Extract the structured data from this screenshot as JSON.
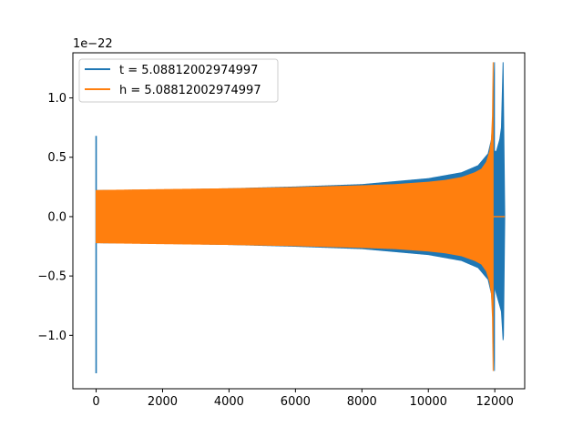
{
  "chart_data": {
    "type": "line",
    "title": "",
    "xlabel": "",
    "ylabel": "",
    "offset_text": "1e−22",
    "xlim": [
      -700,
      12900
    ],
    "ylim": [
      -1.45,
      1.38
    ],
    "xticks": [
      0,
      2000,
      4000,
      6000,
      8000,
      10000,
      12000
    ],
    "xtick_labels": [
      "0",
      "2000",
      "4000",
      "6000",
      "8000",
      "10000",
      "12000"
    ],
    "yticks": [
      -1.0,
      -0.5,
      0.0,
      0.5,
      1.0
    ],
    "ytick_labels": [
      "−1.0",
      "−0.5",
      "0.0",
      "0.5",
      "1.0"
    ],
    "grid": false,
    "legend_position": "upper-left",
    "series": [
      {
        "name": "t = 5.08812002974997",
        "color": "#1f77b4",
        "spike_start": {
          "x": 0,
          "min": -1.32,
          "max": 0.68
        },
        "envelope_x": [
          0,
          2000,
          4000,
          6000,
          8000,
          10000,
          11000,
          11500,
          11800,
          11900,
          11950,
          11990
        ],
        "envelope_amp": [
          0.22,
          0.225,
          0.235,
          0.25,
          0.27,
          0.32,
          0.37,
          0.43,
          0.53,
          0.65,
          0.85,
          1.3
        ],
        "tail_x": [
          11990,
          12000,
          12050,
          12100,
          12150,
          12200,
          12250,
          12260,
          12300
        ],
        "tail_max": [
          0.55,
          0.55,
          0.55,
          0.6,
          0.65,
          0.75,
          1.3,
          1.0,
          0.0
        ],
        "tail_min": [
          -0.55,
          -0.6,
          -0.65,
          -0.7,
          -0.75,
          -0.8,
          -1.04,
          -1.0,
          0.0
        ]
      },
      {
        "name": "h = 5.08812002974997",
        "color": "#ff7f0e",
        "envelope_x": [
          0,
          1000,
          2000,
          4000,
          6000,
          8000,
          9000,
          10000,
          10500,
          11000,
          11400,
          11600,
          11750,
          11850,
          11900,
          11930,
          11950
        ],
        "envelope_amp": [
          0.22,
          0.224,
          0.228,
          0.235,
          0.245,
          0.26,
          0.27,
          0.29,
          0.305,
          0.33,
          0.37,
          0.4,
          0.46,
          0.55,
          0.65,
          0.85,
          1.3
        ],
        "flat_after": 11950,
        "x_end": 12300
      }
    ]
  }
}
